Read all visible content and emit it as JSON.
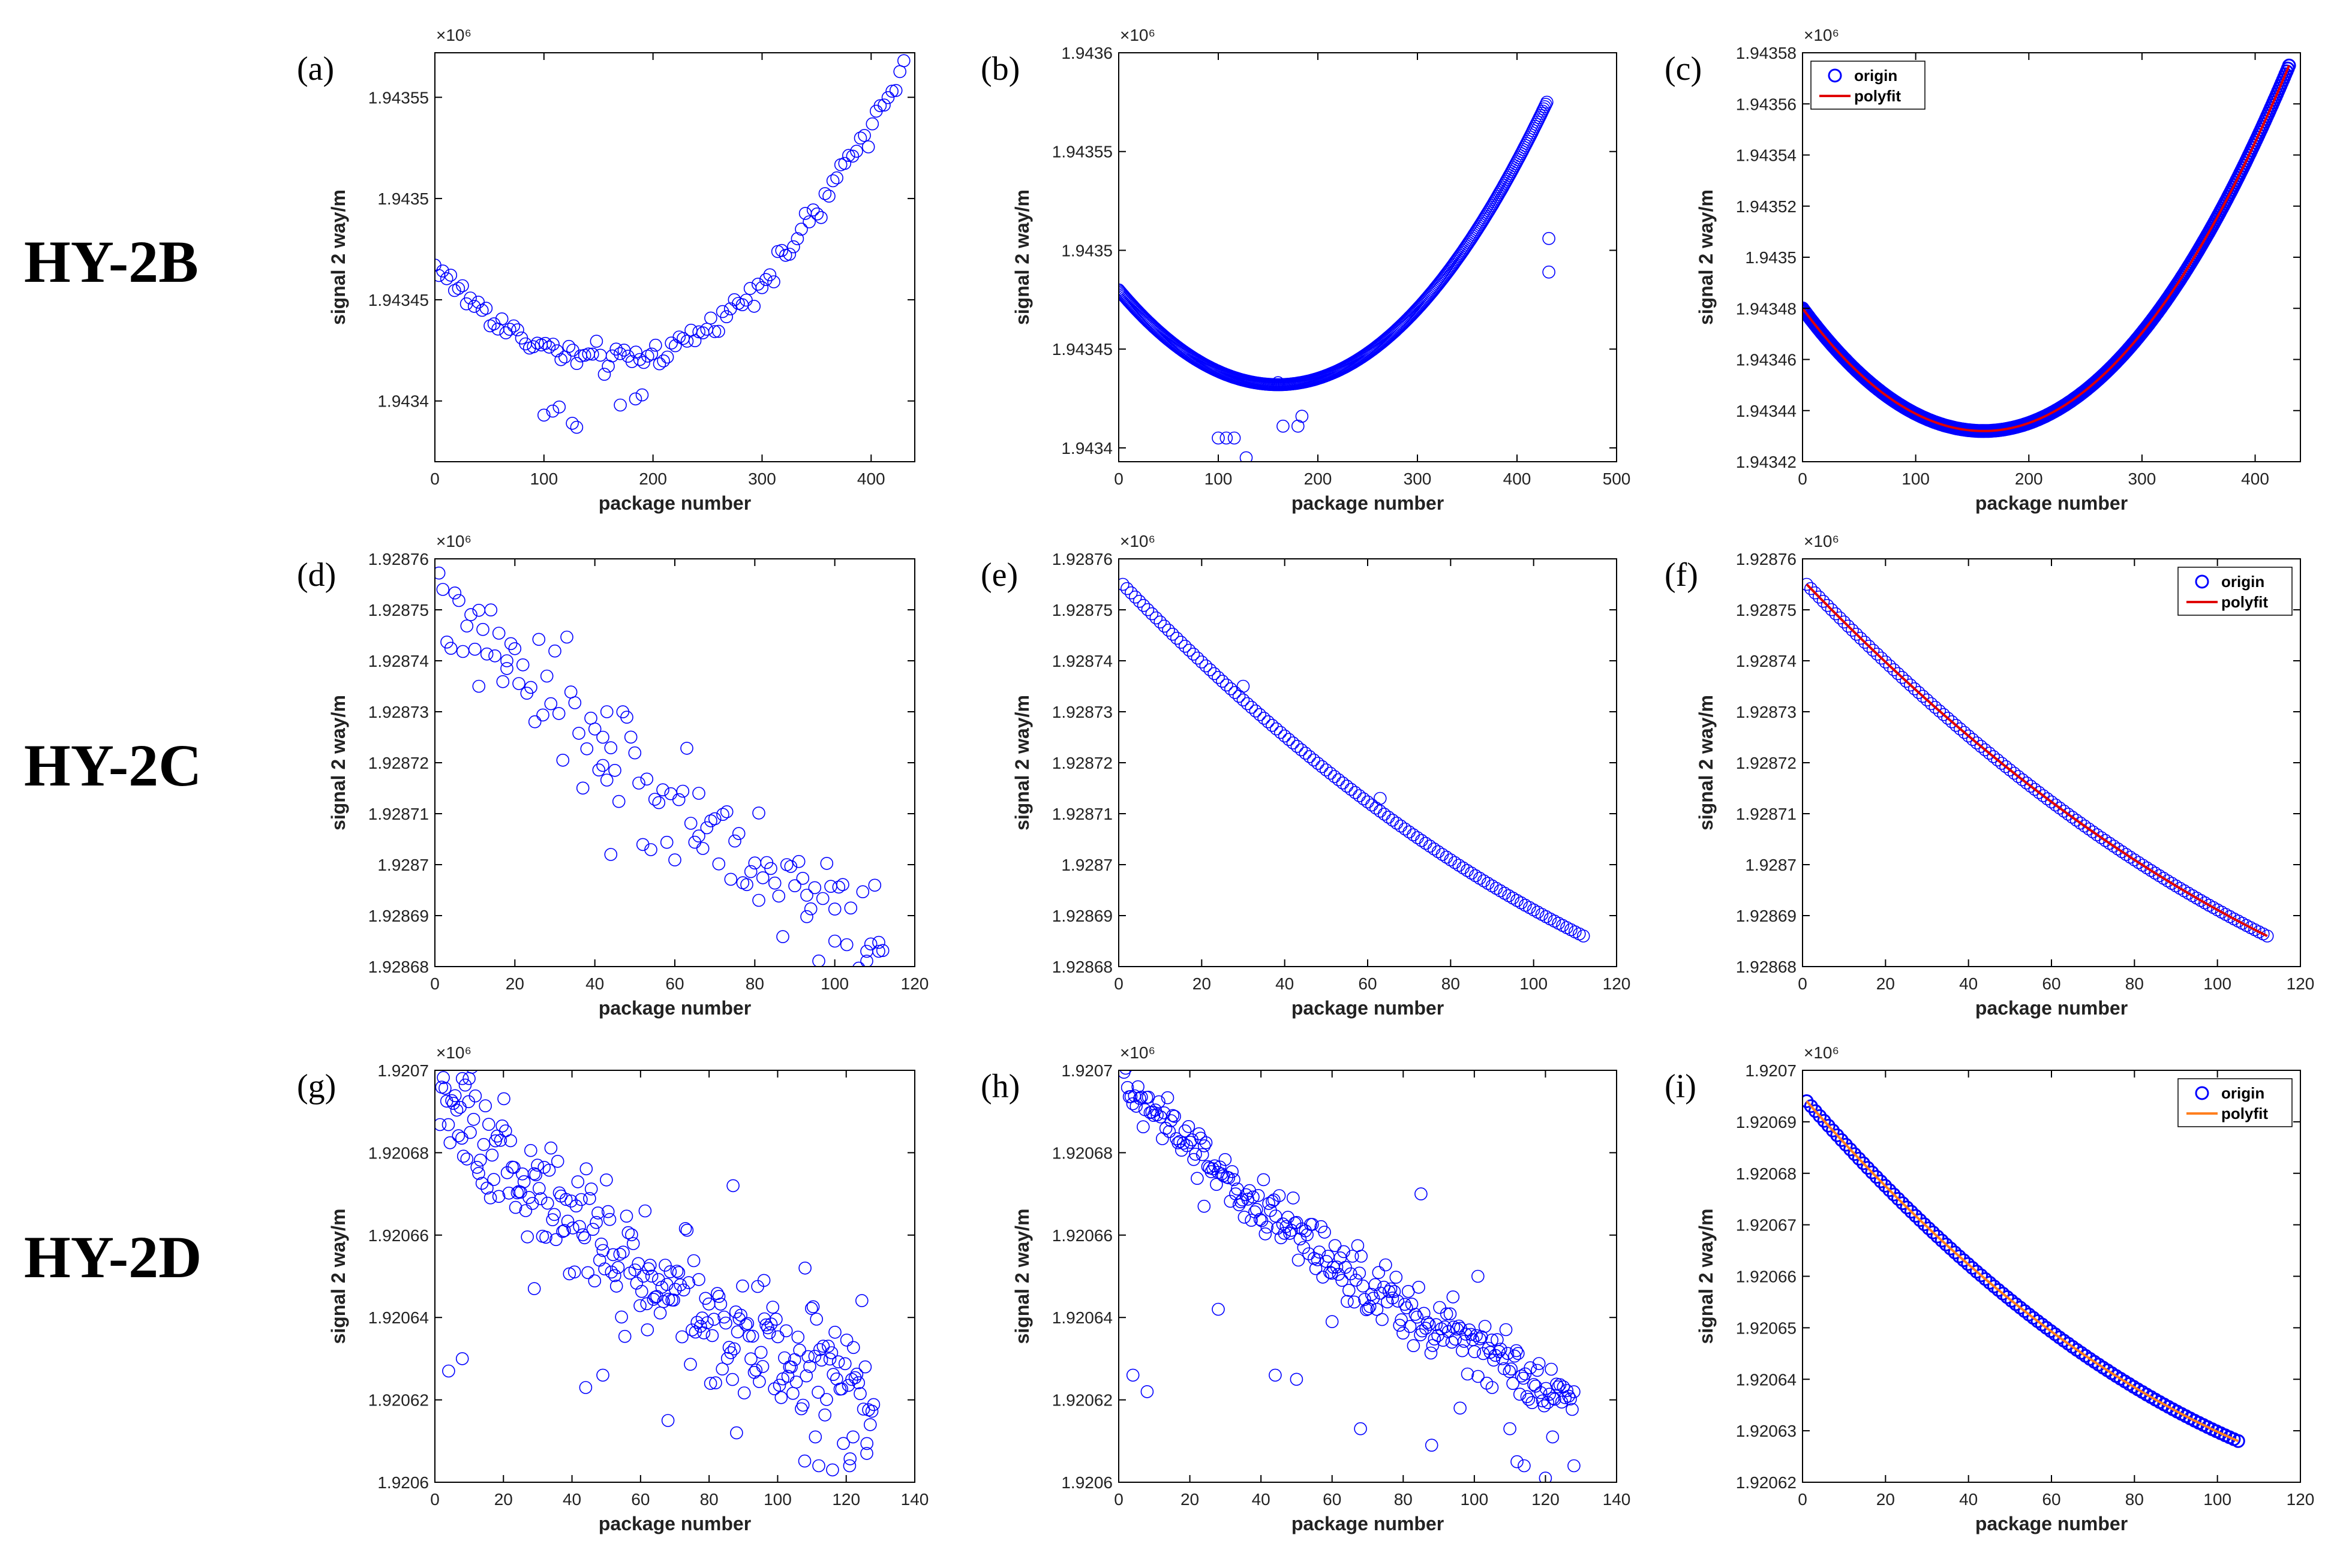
{
  "row_labels": [
    "HY-2B",
    "HY-2C",
    "HY-2D"
  ],
  "colors": {
    "origin": "#0000ff",
    "polyfit_red": "#e00000",
    "polyfit_orange": "#ff7f1f",
    "axis": "#000000"
  },
  "chart_data": [
    {
      "id": "a",
      "label": "(a)",
      "type": "scatter",
      "xlabel": "package number",
      "ylabel": "signal 2 way/m",
      "exponent": "×10⁶",
      "xlim": [
        0,
        440
      ],
      "ylim": [
        1.94337,
        1.943572
      ],
      "xticks": [
        0,
        100,
        200,
        300,
        400
      ],
      "xticklabels": [
        "0",
        "100",
        "200",
        "300",
        "400"
      ],
      "yticks": [
        1.9434,
        1.94345,
        1.9435,
        1.94355
      ],
      "yticklabels": [
        "1.9434",
        "1.94345",
        "1.9435",
        "1.94355"
      ],
      "gen": {
        "mode": "quad",
        "n": 120,
        "x0": 0,
        "x1": 430,
        "xmin": 160,
        "ymin": 1.94342,
        "ya": 1.943467,
        "yb": 1.943568,
        "noise": 3.5e-06
      },
      "outliers": [
        [
          100,
          1.943393
        ],
        [
          108,
          1.943395
        ],
        [
          114,
          1.943397
        ],
        [
          126,
          1.943389
        ],
        [
          130,
          1.943387
        ],
        [
          170,
          1.943398
        ],
        [
          184,
          1.943401
        ],
        [
          190,
          1.943403
        ]
      ],
      "legend": null
    },
    {
      "id": "b",
      "label": "(b)",
      "type": "scatter",
      "xlabel": "package number",
      "ylabel": "signal 2 way/m",
      "exponent": "×10⁶",
      "xlim": [
        0,
        500
      ],
      "ylim": [
        1.943393,
        1.9436
      ],
      "xticks": [
        0,
        100,
        200,
        300,
        400,
        500
      ],
      "xticklabels": [
        "0",
        "100",
        "200",
        "300",
        "400",
        "500"
      ],
      "yticks": [
        1.9434,
        1.94345,
        1.9435,
        1.94355,
        1.9436
      ],
      "yticklabels": [
        "1.9434",
        "1.94345",
        "1.9435",
        "1.94355",
        "1.9436"
      ],
      "gen": {
        "mode": "quad",
        "n": 400,
        "x0": 0,
        "x1": 430,
        "xmin": 160,
        "ymin": 1.943432,
        "ya": 1.94348,
        "yb": 1.943575,
        "noise": 0.0
      },
      "outliers": [
        [
          100,
          1.943405
        ],
        [
          108,
          1.943405
        ],
        [
          116,
          1.943405
        ],
        [
          128,
          1.943395
        ],
        [
          165,
          1.943411
        ],
        [
          180,
          1.943411
        ],
        [
          184,
          1.943416
        ],
        [
          432,
          1.943489
        ],
        [
          432,
          1.943506
        ],
        [
          160,
          1.943433
        ]
      ],
      "legend": null
    },
    {
      "id": "c",
      "label": "(c)",
      "type": "scatter",
      "xlabel": "package number",
      "ylabel": "signal 2 way/m",
      "exponent": "×10⁶",
      "xlim": [
        0,
        440
      ],
      "ylim": [
        1.94342,
        1.94358
      ],
      "xticks": [
        0,
        100,
        200,
        300,
        400
      ],
      "xticklabels": [
        "0",
        "100",
        "200",
        "300",
        "400"
      ],
      "yticks": [
        1.94342,
        1.94344,
        1.94346,
        1.94348,
        1.9435,
        1.94352,
        1.94354,
        1.94356,
        1.94358
      ],
      "yticklabels": [
        "1.94342",
        "1.94344",
        "1.94346",
        "1.94348",
        "1.9435",
        "1.94352",
        "1.94354",
        "1.94356",
        "1.94358"
      ],
      "gen": {
        "mode": "quad",
        "n": 400,
        "x0": 0,
        "x1": 430,
        "xmin": 160,
        "ymin": 1.943432,
        "ya": 1.94348,
        "yb": 1.943575,
        "noise": 0.0
      },
      "outliers": [],
      "legend": {
        "position": "top-left",
        "items": [
          "origin",
          "polyfit"
        ],
        "fit_color": "polyfit_red"
      }
    },
    {
      "id": "d",
      "label": "(d)",
      "type": "scatter",
      "xlabel": "package number",
      "ylabel": "signal 2 way/m",
      "exponent": "×10⁶",
      "xlim": [
        0,
        120
      ],
      "ylim": [
        1.92868,
        1.92876
      ],
      "xticks": [
        0,
        20,
        40,
        60,
        80,
        100,
        120
      ],
      "xticklabels": [
        "0",
        "20",
        "40",
        "60",
        "80",
        "100",
        "120"
      ],
      "yticks": [
        1.92868,
        1.92869,
        1.9287,
        1.92871,
        1.92872,
        1.92873,
        1.92874,
        1.92875,
        1.92876
      ],
      "yticklabels": [
        "1.92868",
        "1.92869",
        "1.9287",
        "1.92871",
        "1.92872",
        "1.92873",
        "1.92874",
        "1.92875",
        "1.92876"
      ],
      "gen": {
        "mode": "curve",
        "n": 112,
        "x0": 1,
        "x1": 112,
        "ys": 1.928752,
        "ye": 1.928686,
        "k": 0.35,
        "noise": 5.5e-06
      },
      "outliers": [
        [
          2,
          1.928754
        ],
        [
          11,
          1.928735
        ],
        [
          18,
          1.92874
        ],
        [
          42,
          1.928725
        ],
        [
          43,
          1.92873
        ],
        [
          44,
          1.928702
        ],
        [
          66,
          1.928714
        ],
        [
          81,
          1.928693
        ],
        [
          93,
          1.928694
        ],
        [
          100,
          1.928685
        ],
        [
          108,
          1.928683
        ],
        [
          111,
          1.928683
        ]
      ],
      "legend": null
    },
    {
      "id": "e",
      "label": "(e)",
      "type": "scatter",
      "xlabel": "package number",
      "ylabel": "signal 2 way/m",
      "exponent": "×10⁶",
      "xlim": [
        0,
        120
      ],
      "ylim": [
        1.92868,
        1.92876
      ],
      "xticks": [
        0,
        20,
        40,
        60,
        80,
        100,
        120
      ],
      "xticklabels": [
        "0",
        "20",
        "40",
        "60",
        "80",
        "100",
        "120"
      ],
      "yticks": [
        1.92868,
        1.92869,
        1.9287,
        1.92871,
        1.92872,
        1.92873,
        1.92874,
        1.92875,
        1.92876
      ],
      "yticklabels": [
        "1.92868",
        "1.92869",
        "1.9287",
        "1.92871",
        "1.92872",
        "1.92873",
        "1.92874",
        "1.92875",
        "1.92876"
      ],
      "gen": {
        "mode": "curve",
        "n": 112,
        "x0": 1,
        "x1": 112,
        "ys": 1.928755,
        "ye": 1.928686,
        "k": 0.35,
        "noise": 0.0
      },
      "outliers": [
        [
          30,
          1.928735
        ],
        [
          63,
          1.928713
        ]
      ],
      "legend": null
    },
    {
      "id": "f",
      "label": "(f)",
      "type": "scatter",
      "xlabel": "package number",
      "ylabel": "signal 2 way/m",
      "exponent": "×10⁶",
      "xlim": [
        0,
        120
      ],
      "ylim": [
        1.92868,
        1.92876
      ],
      "xticks": [
        0,
        20,
        40,
        60,
        80,
        100,
        120
      ],
      "xticklabels": [
        "0",
        "20",
        "40",
        "60",
        "80",
        "100",
        "120"
      ],
      "yticks": [
        1.92868,
        1.92869,
        1.9287,
        1.92871,
        1.92872,
        1.92873,
        1.92874,
        1.92875,
        1.92876
      ],
      "yticklabels": [
        "1.92868",
        "1.92869",
        "1.9287",
        "1.92871",
        "1.92872",
        "1.92873",
        "1.92874",
        "1.92875",
        "1.92876"
      ],
      "gen": {
        "mode": "curve",
        "n": 112,
        "x0": 1,
        "x1": 112,
        "ys": 1.928755,
        "ye": 1.928686,
        "k": 0.35,
        "noise": 0.0
      },
      "outliers": [],
      "legend": {
        "position": "top-right",
        "items": [
          "origin",
          "polyfit"
        ],
        "fit_color": "polyfit_red"
      }
    },
    {
      "id": "g",
      "label": "(g)",
      "type": "scatter",
      "xlabel": "package number",
      "ylabel": "signal 2 way/m",
      "exponent": "×10⁶",
      "xlim": [
        0,
        140
      ],
      "ylim": [
        1.9206,
        1.9207
      ],
      "xticks": [
        0,
        20,
        40,
        60,
        80,
        100,
        120,
        140
      ],
      "xticklabels": [
        "0",
        "20",
        "40",
        "60",
        "80",
        "100",
        "120",
        "140"
      ],
      "yticks": [
        1.9206,
        1.92062,
        1.92064,
        1.92066,
        1.92068,
        1.9207
      ],
      "yticklabels": [
        "1.9206",
        "1.92062",
        "1.92064",
        "1.92066",
        "1.92068",
        "1.9207"
      ],
      "gen": {
        "mode": "curve",
        "n": 260,
        "x0": 1,
        "x1": 128,
        "ys": 1.920692,
        "ye": 1.920621,
        "k": 0.45,
        "noise": 7.5e-06
      },
      "outliers": [
        [
          4,
          1.920627
        ],
        [
          8,
          1.92063
        ],
        [
          29,
          1.920647
        ],
        [
          44,
          1.920623
        ],
        [
          49,
          1.920626
        ],
        [
          62,
          1.920637
        ],
        [
          68,
          1.920615
        ],
        [
          87,
          1.920672
        ],
        [
          88,
          1.920612
        ],
        [
          96,
          1.920649
        ],
        [
          108,
          1.920652
        ],
        [
          111,
          1.920611
        ],
        [
          112,
          1.920604
        ],
        [
          116,
          1.920603
        ],
        [
          121,
          1.920604
        ],
        [
          122,
          1.920611
        ],
        [
          126,
          1.920607
        ],
        [
          8,
          1.920698
        ],
        [
          10,
          1.920698
        ]
      ],
      "legend": null
    },
    {
      "id": "h",
      "label": "(h)",
      "type": "scatter",
      "xlabel": "package number",
      "ylabel": "signal 2 way/m",
      "exponent": "×10⁶",
      "xlim": [
        0,
        140
      ],
      "ylim": [
        1.9206,
        1.9207
      ],
      "xticks": [
        0,
        20,
        40,
        60,
        80,
        100,
        120,
        140
      ],
      "xticklabels": [
        "0",
        "20",
        "40",
        "60",
        "80",
        "100",
        "120",
        "140"
      ],
      "yticks": [
        1.9206,
        1.92062,
        1.92064,
        1.92066,
        1.92068,
        1.9207
      ],
      "yticklabels": [
        "1.9206",
        "1.92062",
        "1.92064",
        "1.92066",
        "1.92068",
        "1.9207"
      ],
      "gen": {
        "mode": "curve",
        "n": 260,
        "x0": 1,
        "x1": 128,
        "ys": 1.920697,
        "ye": 1.920622,
        "k": 0.45,
        "noise": 3.5e-06
      },
      "outliers": [
        [
          4,
          1.920626
        ],
        [
          8,
          1.920622
        ],
        [
          24,
          1.920667
        ],
        [
          28,
          1.920642
        ],
        [
          44,
          1.920626
        ],
        [
          50,
          1.920625
        ],
        [
          60,
          1.920639
        ],
        [
          68,
          1.920613
        ],
        [
          85,
          1.92067
        ],
        [
          88,
          1.920609
        ],
        [
          94,
          1.920645
        ],
        [
          96,
          1.920618
        ],
        [
          101,
          1.92065
        ],
        [
          105,
          1.920623
        ],
        [
          110,
          1.920613
        ],
        [
          112,
          1.920605
        ],
        [
          114,
          1.920604
        ],
        [
          120,
          1.920601
        ],
        [
          122,
          1.920611
        ],
        [
          128,
          1.920604
        ]
      ],
      "legend": null
    },
    {
      "id": "i",
      "label": "(i)",
      "type": "scatter",
      "xlabel": "package number",
      "ylabel": "signal 2 way/m",
      "exponent": "×10⁶",
      "xlim": [
        0,
        120
      ],
      "ylim": [
        1.92062,
        1.9207
      ],
      "xticks": [
        0,
        20,
        40,
        60,
        80,
        100,
        120
      ],
      "xticklabels": [
        "0",
        "20",
        "40",
        "60",
        "80",
        "100",
        "120"
      ],
      "yticks": [
        1.92062,
        1.92063,
        1.92064,
        1.92065,
        1.92066,
        1.92067,
        1.92068,
        1.92069,
        1.9207
      ],
      "yticklabels": [
        "1.92062",
        "1.92063",
        "1.92064",
        "1.92065",
        "1.92066",
        "1.92067",
        "1.92068",
        "1.92069",
        "1.9207"
      ],
      "gen": {
        "mode": "curve",
        "n": 100,
        "x0": 1,
        "x1": 105,
        "ys": 1.920694,
        "ye": 1.920628,
        "k": 0.45,
        "noise": 0.0
      },
      "outliers": [],
      "legend": {
        "position": "top-right",
        "items": [
          "origin",
          "polyfit"
        ],
        "fit_color": "polyfit_orange"
      }
    }
  ]
}
